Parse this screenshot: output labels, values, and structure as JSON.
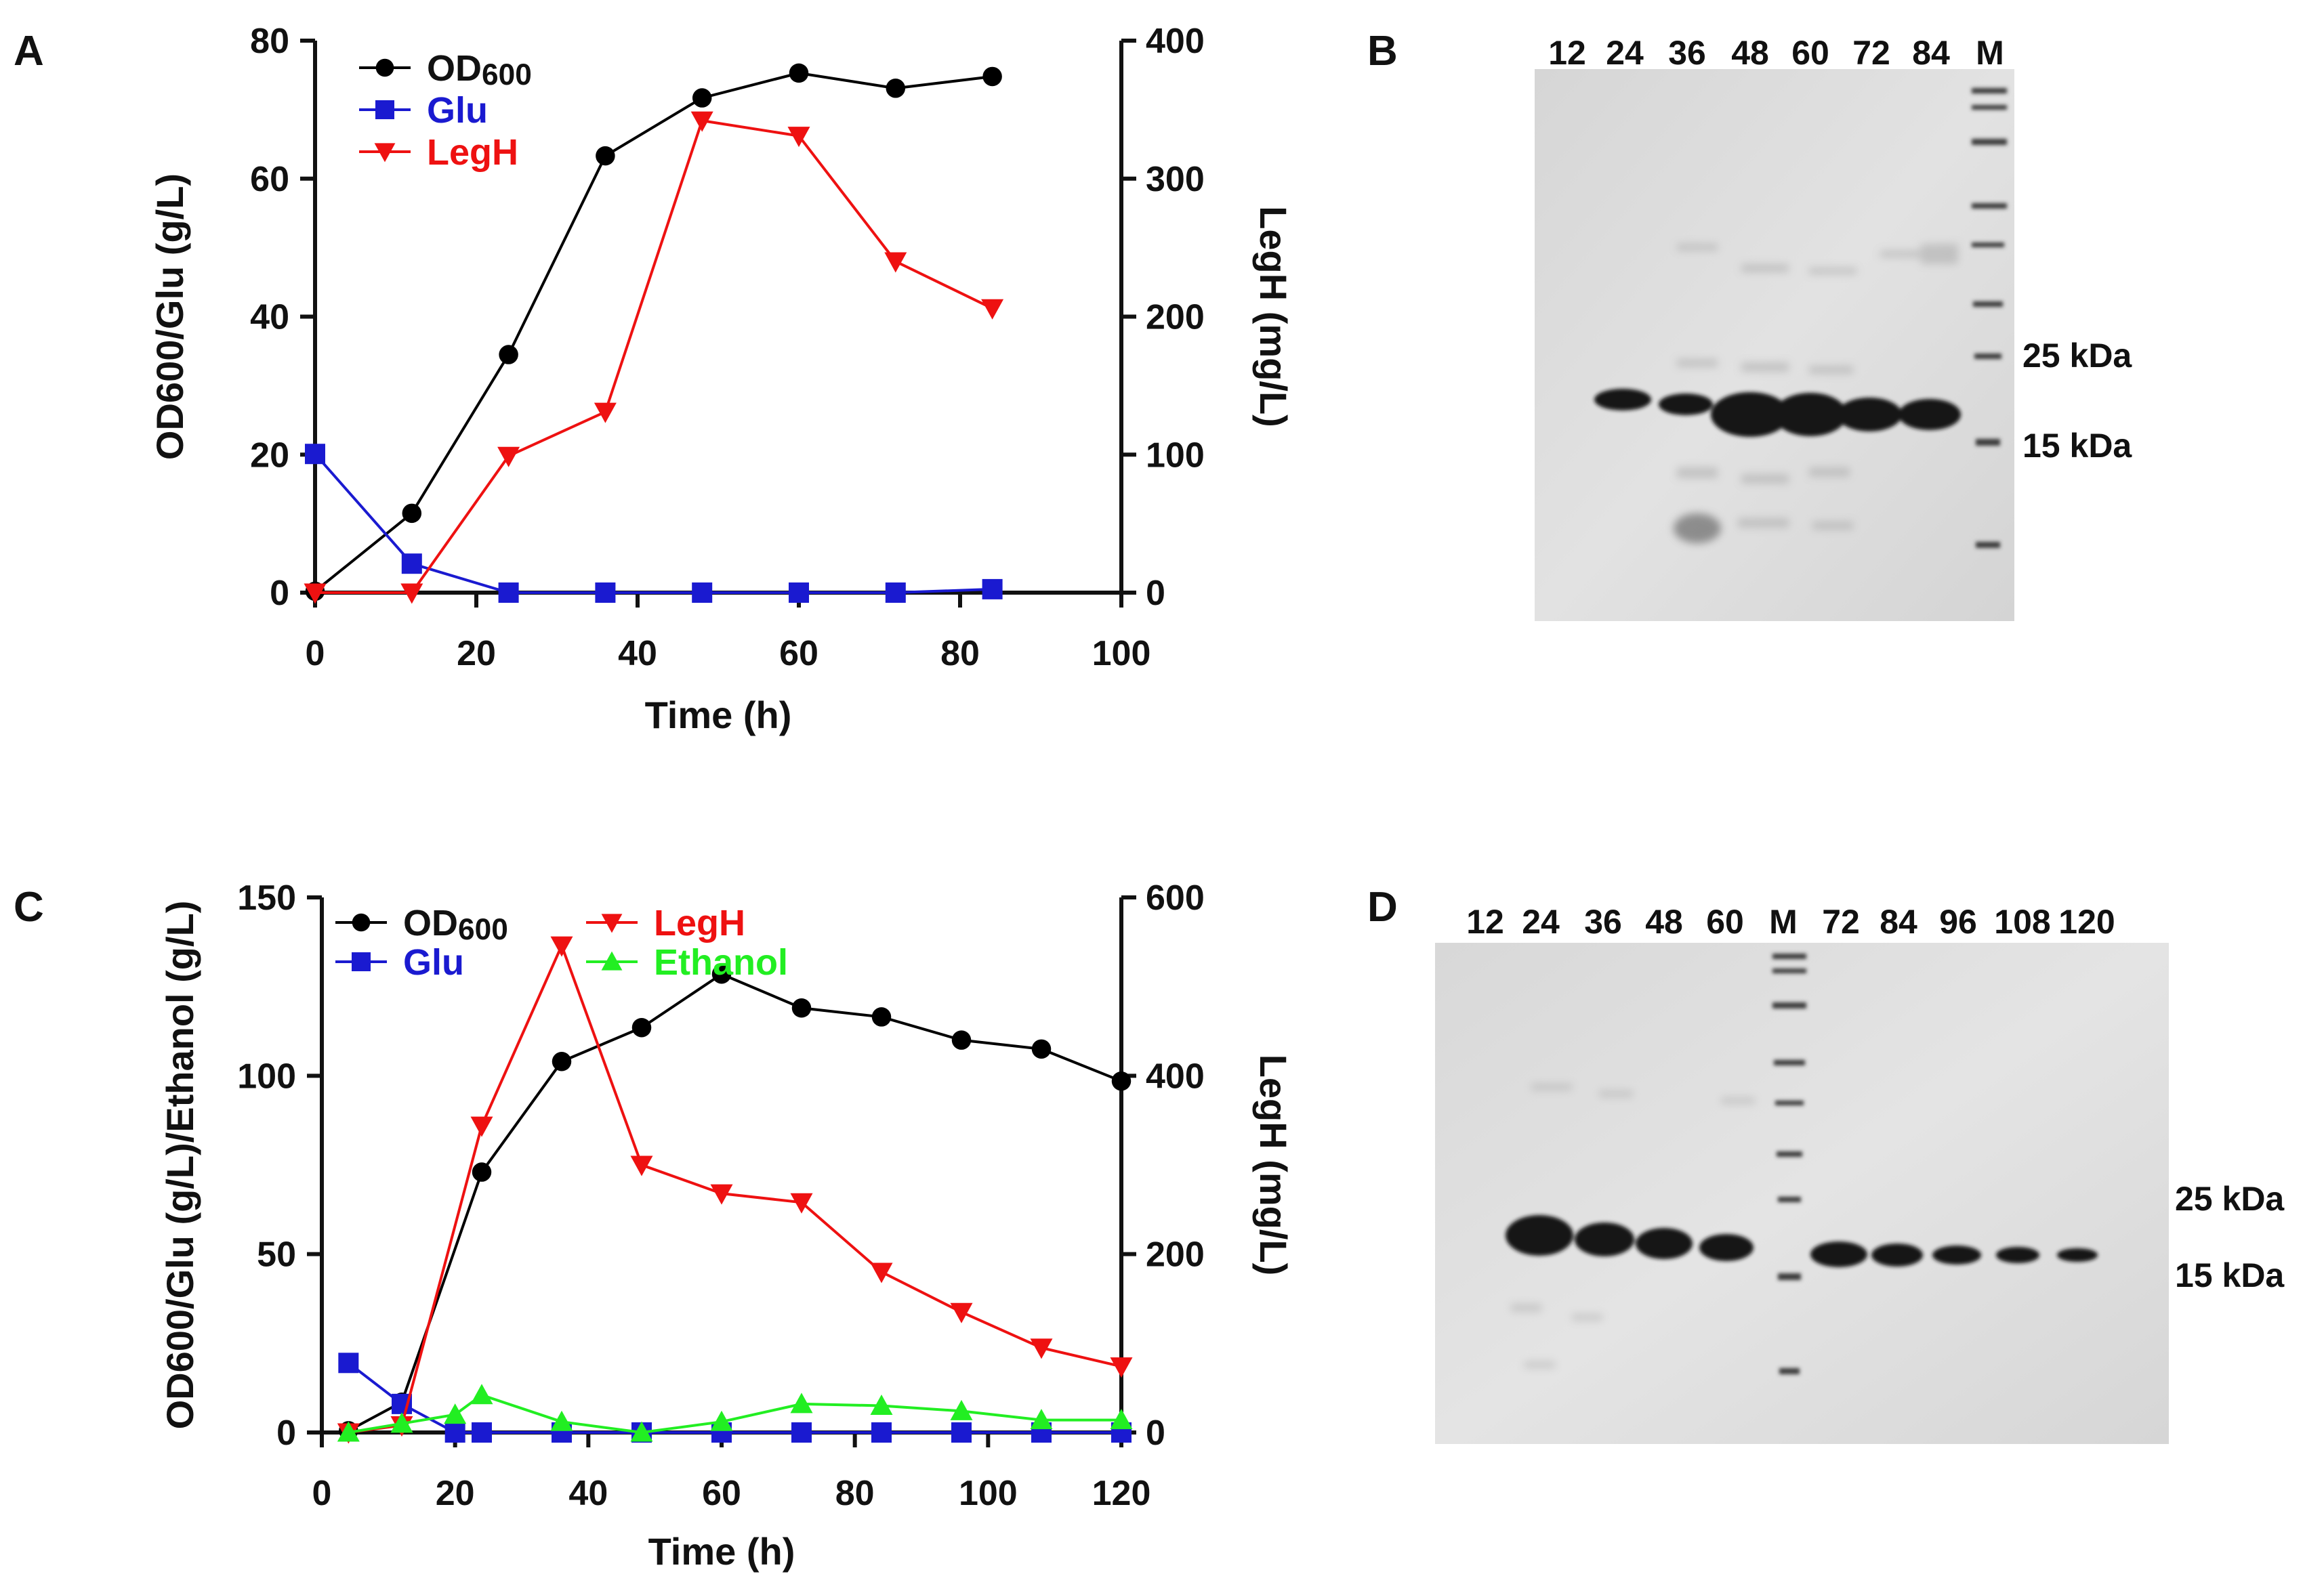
{
  "colors": {
    "od": "#000000",
    "glu": "#1a1ad0",
    "legh": "#ee1111",
    "ethanol": "#22ee22",
    "axis": "#111111",
    "gel_bg": "#dcdcdc",
    "band": "#111111"
  },
  "chart_data": [
    {
      "panel": "A",
      "type": "line",
      "xlabel": "Time (h)",
      "ylabel_left": "OD600/Glu (g/L)",
      "ylabel_right": "LegH (mg/L)",
      "xlim": [
        0,
        100
      ],
      "ylim_left": [
        0,
        80
      ],
      "ylim_right": [
        0,
        400
      ],
      "xticks": [
        0,
        20,
        40,
        60,
        80,
        100
      ],
      "yticks_left": [
        0,
        20,
        40,
        60,
        80
      ],
      "yticks_right": [
        0,
        100,
        200,
        300,
        400
      ],
      "legend": {
        "position": "top-left",
        "entries": [
          {
            "key": "od",
            "prefix": "OD",
            "sub": "600",
            "color": "#000000",
            "marker": "circle"
          },
          {
            "key": "glu",
            "prefix": "Glu",
            "sub": "",
            "color": "#1a1ad0",
            "marker": "square"
          },
          {
            "key": "legh",
            "prefix": "LegH",
            "sub": "",
            "color": "#ee1111",
            "marker": "triangle-down"
          }
        ]
      },
      "series": [
        {
          "key": "od",
          "name": "OD600",
          "axis": "left",
          "marker": "circle",
          "color": "#000000",
          "x": [
            0,
            12,
            24,
            36,
            48,
            60,
            72,
            84
          ],
          "y": [
            0.2,
            11.5,
            34.5,
            63.3,
            71.7,
            75.3,
            73.1,
            74.8
          ]
        },
        {
          "key": "glu",
          "name": "Glu",
          "axis": "left",
          "marker": "square",
          "color": "#1a1ad0",
          "x": [
            0,
            12,
            24,
            36,
            48,
            60,
            72,
            84
          ],
          "y": [
            20.1,
            4.2,
            0,
            0,
            0,
            0,
            0,
            0.5
          ]
        },
        {
          "key": "legh",
          "name": "LegH",
          "axis": "right",
          "marker": "triangle-down",
          "color": "#ee1111",
          "x": [
            0,
            12,
            24,
            36,
            48,
            60,
            72,
            84
          ],
          "y": [
            0,
            0,
            99,
            131,
            342,
            331,
            240,
            206
          ]
        }
      ]
    },
    {
      "panel": "C",
      "type": "line",
      "xlabel": "Time (h)",
      "ylabel_left": "OD600/Glu (g/L)/Ethanol (g/L)",
      "ylabel_right": "LegH (mg/L)",
      "xlim": [
        0,
        120
      ],
      "ylim_left": [
        0,
        150
      ],
      "ylim_right": [
        0,
        600
      ],
      "xticks": [
        0,
        20,
        40,
        60,
        80,
        100,
        120
      ],
      "yticks_left": [
        0,
        50,
        100,
        150
      ],
      "yticks_right": [
        0,
        200,
        400,
        600
      ],
      "legend": {
        "position": "top-left",
        "entries": [
          {
            "key": "od",
            "prefix": "OD",
            "sub": "600",
            "color": "#000000",
            "marker": "circle"
          },
          {
            "key": "glu",
            "prefix": "Glu",
            "sub": "",
            "color": "#1a1ad0",
            "marker": "square"
          },
          {
            "key": "legh",
            "prefix": "LegH",
            "sub": "",
            "color": "#ee1111",
            "marker": "triangle-down"
          },
          {
            "key": "ethanol",
            "prefix": "Ethanol",
            "sub": "",
            "color": "#22ee22",
            "marker": "triangle-up"
          }
        ]
      },
      "series": [
        {
          "key": "od",
          "name": "OD600",
          "axis": "left",
          "marker": "circle",
          "color": "#000000",
          "x": [
            4,
            12,
            24,
            36,
            48,
            60,
            72,
            84,
            96,
            108,
            120
          ],
          "y": [
            0.5,
            8.5,
            73,
            104,
            113.5,
            128.5,
            119,
            116.5,
            110,
            107.5,
            98.5
          ]
        },
        {
          "key": "glu",
          "name": "Glu",
          "axis": "left",
          "marker": "square",
          "color": "#1a1ad0",
          "x": [
            4,
            12,
            20,
            24,
            36,
            48,
            60,
            72,
            84,
            96,
            108,
            120
          ],
          "y": [
            19.5,
            8,
            0,
            0,
            0,
            0,
            0,
            0,
            0,
            0,
            0,
            0
          ]
        },
        {
          "key": "legh",
          "name": "LegH",
          "axis": "right",
          "marker": "triangle-down",
          "color": "#ee1111",
          "x": [
            4,
            12,
            24,
            36,
            48,
            60,
            72,
            84,
            96,
            108,
            120
          ],
          "y": [
            0,
            8,
            344,
            546,
            300,
            268,
            258,
            180,
            135,
            95,
            74
          ]
        },
        {
          "key": "ethanol",
          "name": "Ethanol",
          "axis": "left",
          "marker": "triangle-up",
          "color": "#22ee22",
          "x": [
            4,
            12,
            20,
            24,
            36,
            48,
            60,
            72,
            84,
            96,
            108,
            120
          ],
          "y": [
            0,
            2.5,
            5,
            10.5,
            3,
            0,
            3,
            8,
            7.5,
            6,
            3.5,
            3.5
          ]
        }
      ]
    }
  ],
  "panels": {
    "A": {
      "label": "A"
    },
    "B": {
      "label": "B",
      "lanes": [
        "12",
        "24",
        "36",
        "48",
        "60",
        "72",
        "84",
        "M"
      ],
      "markers": [
        "25 kDa",
        "15 kDa"
      ]
    },
    "C": {
      "label": "C"
    },
    "D": {
      "label": "D",
      "lanes": [
        "12",
        "24",
        "36",
        "48",
        "60",
        "M",
        "72",
        "84",
        "96",
        "108",
        "120"
      ],
      "markers": [
        "25 kDa",
        "15 kDa"
      ]
    }
  }
}
